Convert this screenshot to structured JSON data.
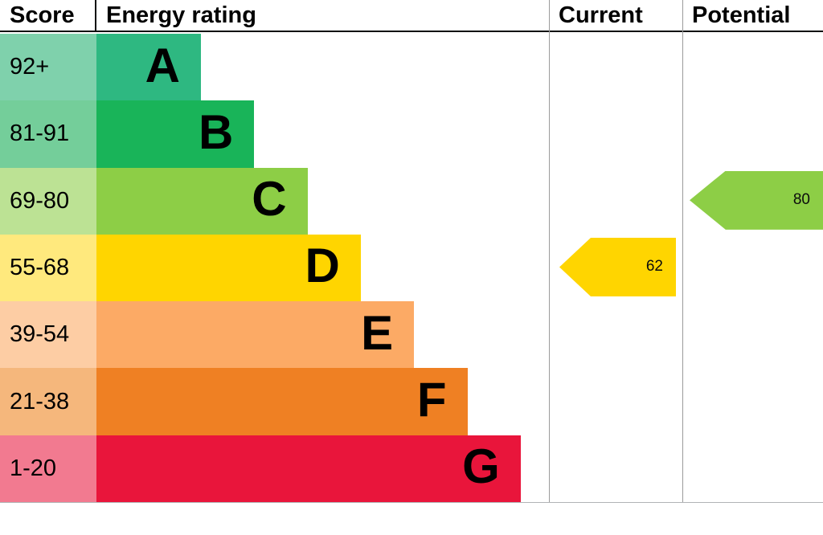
{
  "header": {
    "score": "Score",
    "energy_rating": "Energy rating",
    "current": "Current",
    "potential": "Potential"
  },
  "chart_data": {
    "type": "bar",
    "subtype": "epc-energy-rating",
    "title": "Energy rating",
    "columns": [
      "Score",
      "Energy rating",
      "Current",
      "Potential"
    ],
    "bands": [
      {
        "letter": "A",
        "score_range": "92+",
        "bar_color": "#2eb881",
        "score_bg": "#7fd1ac"
      },
      {
        "letter": "B",
        "score_range": "81-91",
        "bar_color": "#19b459",
        "score_bg": "#74ce9a"
      },
      {
        "letter": "C",
        "score_range": "69-80",
        "bar_color": "#8dce46",
        "score_bg": "#bce294"
      },
      {
        "letter": "D",
        "score_range": "55-68",
        "bar_color": "#ffd500",
        "score_bg": "#ffe97d"
      },
      {
        "letter": "E",
        "score_range": "39-54",
        "bar_color": "#fcaa65",
        "score_bg": "#fdcda4"
      },
      {
        "letter": "F",
        "score_range": "21-38",
        "bar_color": "#ef8023",
        "score_bg": "#f5b77c"
      },
      {
        "letter": "G",
        "score_range": "1-20",
        "bar_color": "#e9153b",
        "score_bg": "#f27a90"
      }
    ],
    "current": {
      "value": 62,
      "band": "D",
      "color": "#ffd500"
    },
    "potential": {
      "value": 80,
      "band": "C",
      "color": "#8dce46"
    }
  }
}
